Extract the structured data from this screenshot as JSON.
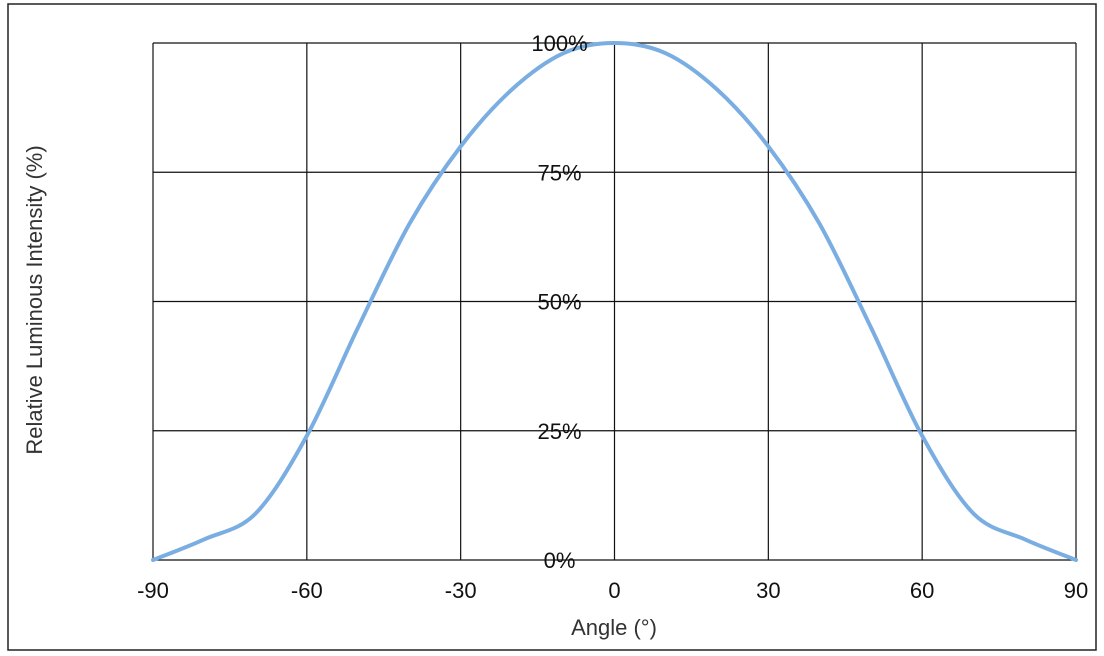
{
  "chart_data": {
    "type": "line",
    "title": "",
    "xlabel": "Angle (°)",
    "ylabel": "Relative Luminous Intensity (%)",
    "x_ticks": [
      "-90",
      "-60",
      "-30",
      "0",
      "30",
      "60",
      "90"
    ],
    "y_ticks": [
      "0%",
      "25%",
      "50%",
      "75%",
      "100%"
    ],
    "xlim": [
      -90,
      90
    ],
    "ylim": [
      0,
      100
    ],
    "grid": true,
    "series": [
      {
        "color": "#7aaee3",
        "x": [
          -90,
          -80,
          -70,
          -60,
          -50,
          -40,
          -30,
          -20,
          -10,
          0,
          10,
          20,
          30,
          40,
          50,
          60,
          70,
          80,
          90
        ],
        "y": [
          0,
          4,
          9,
          24,
          45,
          65,
          80,
          91,
          98,
          100,
          98,
          91,
          80,
          65,
          45,
          24,
          9,
          4,
          0
        ]
      }
    ]
  }
}
